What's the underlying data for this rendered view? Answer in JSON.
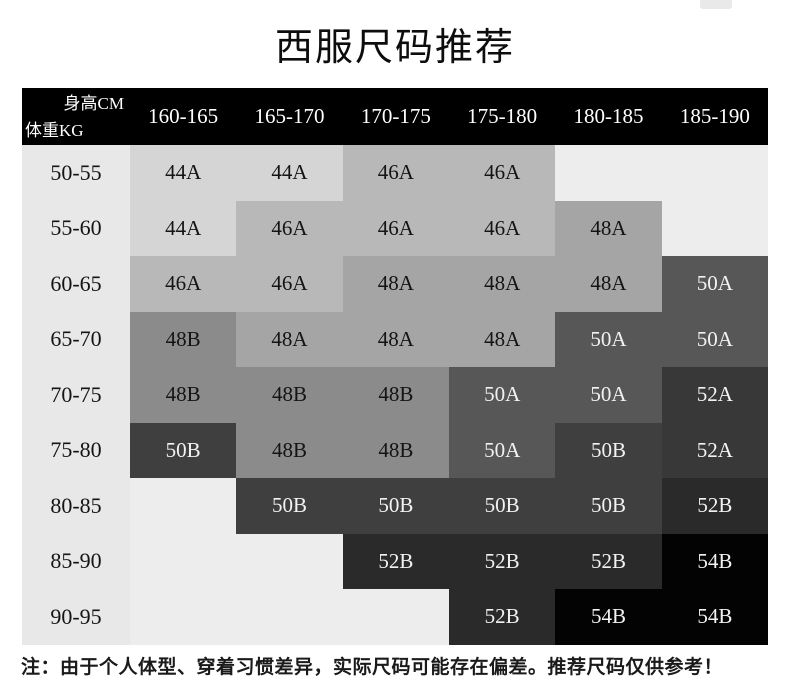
{
  "title": "西服尺码推荐",
  "note": "注：由于个人体型、穿着习惯差异，实际尺码可能存在偏差。推荐尺码仅供参考！",
  "table": {
    "corner": {
      "top": "身高CM",
      "bottom": "体重KG"
    },
    "columns": [
      "160-165",
      "165-170",
      "170-175",
      "175-180",
      "180-185",
      "185-190"
    ],
    "rows": [
      {
        "label": "50-55",
        "cells": [
          "44A",
          "44A",
          "46A",
          "46A",
          "",
          ""
        ]
      },
      {
        "label": "55-60",
        "cells": [
          "44A",
          "46A",
          "46A",
          "46A",
          "48A",
          ""
        ]
      },
      {
        "label": "60-65",
        "cells": [
          "46A",
          "46A",
          "48A",
          "48A",
          "48A",
          "50A"
        ]
      },
      {
        "label": "65-70",
        "cells": [
          "48B",
          "48A",
          "48A",
          "48A",
          "50A",
          "50A"
        ]
      },
      {
        "label": "70-75",
        "cells": [
          "48B",
          "48B",
          "48B",
          "50A",
          "50A",
          "52A"
        ]
      },
      {
        "label": "75-80",
        "cells": [
          "50B",
          "48B",
          "48B",
          "50A",
          "50B",
          "52A"
        ]
      },
      {
        "label": "80-85",
        "cells": [
          "",
          "50B",
          "50B",
          "50B",
          "50B",
          "52B"
        ]
      },
      {
        "label": "85-90",
        "cells": [
          "",
          "",
          "52B",
          "52B",
          "52B",
          "54B"
        ]
      },
      {
        "label": "90-95",
        "cells": [
          "",
          "",
          "",
          "52B",
          "54B",
          "54B"
        ]
      }
    ],
    "colors": {
      "header_bg": "#000000",
      "header_fg": "#ffffff",
      "label_bg": "#e8e8e8",
      "empty_bg": "#ededed",
      "dark_text": "#141414",
      "light_text": "#f2f2f2",
      "sizes": {
        "44A": {
          "bg": "#d5d5d5",
          "fg": "#141414"
        },
        "46A": {
          "bg": "#b8b8b8",
          "fg": "#141414"
        },
        "48A": {
          "bg": "#a5a5a5",
          "fg": "#141414"
        },
        "48B": {
          "bg": "#8b8b8b",
          "fg": "#141414"
        },
        "50A": {
          "bg": "#575757",
          "fg": "#f2f2f2"
        },
        "50B": {
          "bg": "#3f3f3f",
          "fg": "#f2f2f2"
        },
        "52A": {
          "bg": "#383838",
          "fg": "#f2f2f2"
        },
        "52B": {
          "bg": "#2a2a2a",
          "fg": "#f2f2f2"
        },
        "54B": {
          "bg": "#030303",
          "fg": "#f2f2f2"
        }
      }
    }
  }
}
